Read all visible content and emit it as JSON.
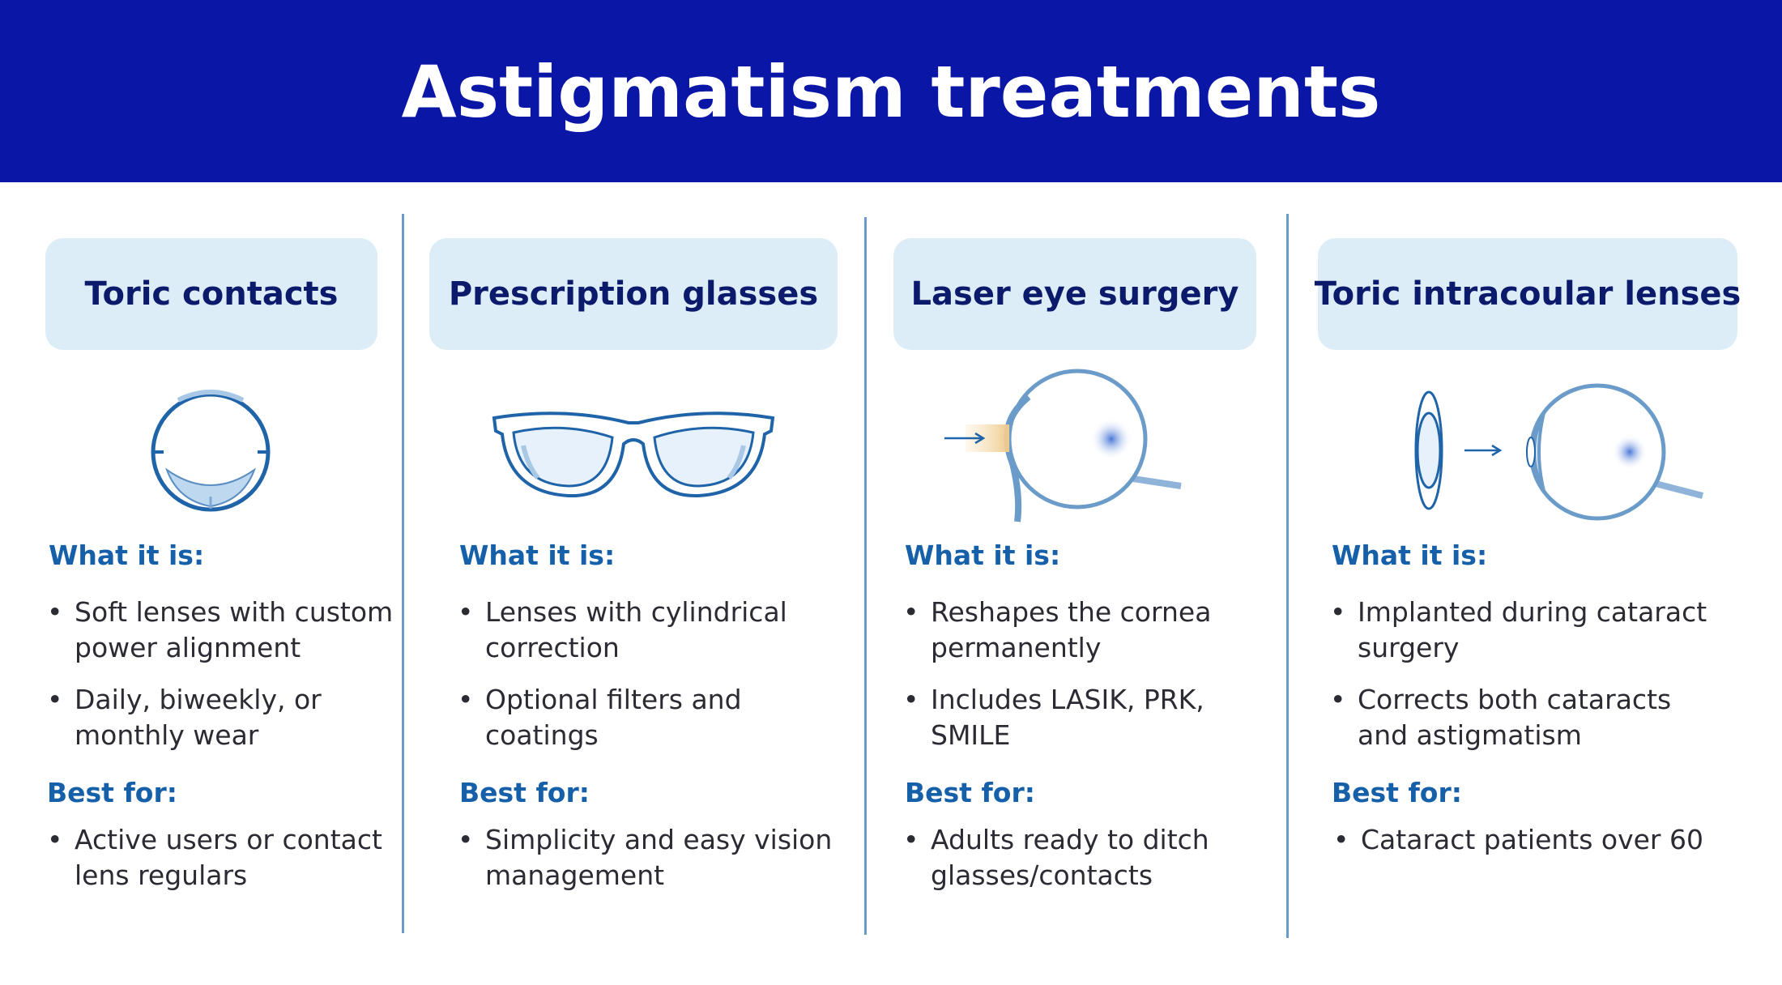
{
  "title": "Astigmatism treatments",
  "colors": {
    "banner": "#0a16a6",
    "heading_box": "#dcedf8",
    "heading_text": "#0c1a6b",
    "label": "#1560a8",
    "divider": "#6b9cc9"
  },
  "columns": [
    {
      "heading": "Toric contacts",
      "icon": "contact-lens-icon",
      "what_label": "What it is:",
      "what": [
        "Soft lenses with custom power alignment",
        "Daily, biweekly, or monthly wear"
      ],
      "best_label": "Best for:",
      "best": [
        "Active users or contact lens regulars"
      ]
    },
    {
      "heading": "Prescription glasses",
      "icon": "glasses-icon",
      "what_label": "What it is:",
      "what": [
        "Lenses with cylindrical correction",
        "Optional filters and coatings"
      ],
      "best_label": "Best for:",
      "best": [
        "Simplicity and easy vision management"
      ]
    },
    {
      "heading": "Laser eye surgery",
      "icon": "laser-eye-icon",
      "what_label": "What it is:",
      "what": [
        "Reshapes the cornea permanently",
        "Includes LASIK, PRK, SMILE"
      ],
      "best_label": "Best for:",
      "best": [
        "Adults ready to ditch glasses/contacts"
      ]
    },
    {
      "heading": "Toric intracoular lenses",
      "icon": "intraocular-lens-icon",
      "what_label": "What it is:",
      "what": [
        "Implanted during cataract surgery",
        "Corrects both cataracts and astigmatism"
      ],
      "best_label": "Best for:",
      "best": [
        "Cataract patients over 60"
      ]
    }
  ]
}
